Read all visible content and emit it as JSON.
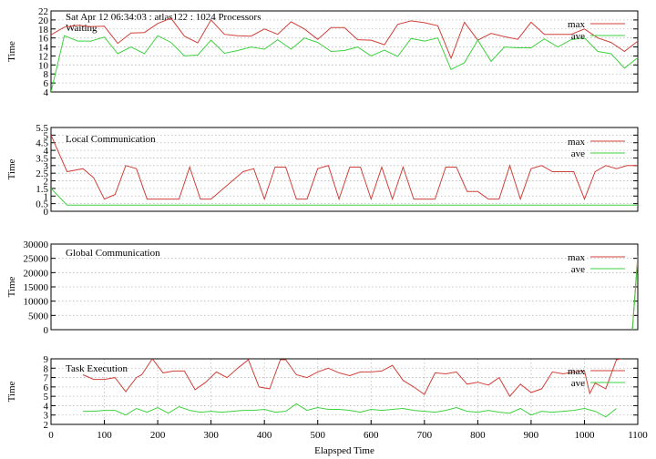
{
  "header": "Sat Apr 12 06:34:03 : atlas122 : 1024 Processors",
  "chart_data": [
    {
      "type": "line",
      "title": "Waiting",
      "ylabel": "Time",
      "xlim": [
        0,
        1100
      ],
      "ylim": [
        4,
        22
      ],
      "yticks": [
        4,
        6,
        8,
        10,
        12,
        14,
        16,
        18,
        20,
        22
      ],
      "x_grid": false,
      "legend_position": "top-right",
      "series": [
        {
          "name": "max",
          "color": "#d0403a",
          "x": [
            0,
            25,
            50,
            75,
            100,
            125,
            150,
            175,
            200,
            225,
            250,
            275,
            300,
            325,
            350,
            375,
            400,
            425,
            450,
            475,
            500,
            525,
            550,
            575,
            600,
            625,
            650,
            675,
            700,
            725,
            750,
            775,
            800,
            825,
            850,
            875,
            900,
            925,
            950,
            975,
            1000,
            1025,
            1050,
            1075,
            1100
          ],
          "y": [
            16.7,
            18.4,
            18.8,
            18.5,
            18.6,
            14.8,
            17.1,
            17.2,
            19.2,
            20.4,
            16.4,
            14.9,
            20.0,
            16.8,
            16.5,
            16.4,
            18.0,
            16.8,
            19.6,
            18.0,
            15.7,
            18.3,
            18.3,
            15.6,
            15.5,
            14.5,
            19.0,
            19.8,
            19.4,
            18.7,
            11.5,
            19.5,
            15.5,
            17.0,
            16.3,
            15.7,
            19.5,
            16.8,
            16.8,
            16.8,
            18.0,
            16.0,
            15.0,
            13.0,
            15.3
          ]
        },
        {
          "name": "ave",
          "color": "#3fd13f",
          "x": [
            0,
            25,
            50,
            75,
            100,
            125,
            150,
            175,
            200,
            225,
            250,
            275,
            300,
            325,
            350,
            375,
            400,
            425,
            450,
            475,
            500,
            525,
            550,
            575,
            600,
            625,
            650,
            675,
            700,
            725,
            750,
            775,
            800,
            825,
            850,
            875,
            900,
            925,
            950,
            975,
            1000,
            1025,
            1050,
            1075,
            1100
          ],
          "y": [
            4.0,
            16.5,
            15.3,
            15.3,
            16.2,
            12.5,
            14.0,
            12.5,
            16.5,
            15.0,
            12.0,
            12.2,
            15.5,
            12.6,
            13.2,
            14.0,
            13.5,
            15.6,
            13.5,
            16.0,
            15.0,
            13.0,
            13.2,
            14.0,
            12.0,
            13.3,
            11.9,
            15.9,
            15.3,
            16.0,
            9.0,
            10.5,
            15.5,
            10.8,
            14.0,
            13.8,
            13.8,
            15.8,
            14.0,
            15.6,
            16.0,
            13.0,
            12.5,
            9.3,
            11.6
          ]
        }
      ]
    },
    {
      "type": "line",
      "title": "Local Communication",
      "ylabel": "Time",
      "xlim": [
        0,
        1100
      ],
      "ylim": [
        0,
        5.5
      ],
      "yticks": [
        0,
        0.5,
        1,
        1.5,
        2,
        2.5,
        3,
        3.5,
        4,
        4.5,
        5,
        5.5
      ],
      "x_grid": false,
      "legend_position": "top-right",
      "series": [
        {
          "name": "max",
          "color": "#d0403a",
          "x": [
            0,
            30,
            60,
            80,
            100,
            120,
            140,
            160,
            180,
            200,
            220,
            240,
            260,
            280,
            300,
            320,
            340,
            360,
            380,
            400,
            420,
            440,
            460,
            480,
            500,
            520,
            540,
            560,
            580,
            600,
            620,
            640,
            660,
            680,
            700,
            720,
            740,
            760,
            780,
            800,
            820,
            840,
            860,
            880,
            900,
            920,
            940,
            960,
            980,
            1000,
            1020,
            1040,
            1060,
            1080,
            1100
          ],
          "y": [
            5.0,
            2.6,
            2.8,
            2.2,
            0.8,
            1.1,
            3.0,
            2.8,
            0.8,
            0.8,
            0.8,
            0.8,
            2.9,
            0.8,
            0.8,
            1.4,
            2.0,
            2.6,
            2.8,
            0.8,
            2.9,
            2.9,
            0.8,
            0.8,
            2.8,
            3.0,
            0.8,
            2.9,
            2.9,
            0.8,
            2.9,
            0.8,
            2.9,
            0.8,
            0.8,
            0.8,
            2.9,
            2.9,
            1.3,
            1.3,
            0.8,
            0.8,
            3.0,
            0.8,
            2.8,
            3.0,
            2.6,
            2.6,
            2.6,
            0.8,
            2.6,
            3.0,
            2.8,
            3.0,
            3.0
          ]
        },
        {
          "name": "ave",
          "color": "#3fd13f",
          "x": [
            0,
            30,
            60,
            100,
            200,
            300,
            400,
            500,
            600,
            700,
            800,
            900,
            1000,
            1100
          ],
          "y": [
            1.5,
            0.4,
            0.4,
            0.4,
            0.4,
            0.4,
            0.4,
            0.4,
            0.4,
            0.4,
            0.4,
            0.4,
            0.4,
            0.4
          ]
        }
      ]
    },
    {
      "type": "line",
      "title": "Global Communication",
      "ylabel": "Time",
      "xlim": [
        0,
        1100
      ],
      "ylim": [
        0,
        30000
      ],
      "yticks": [
        0,
        5000,
        10000,
        15000,
        20000,
        25000,
        30000
      ],
      "x_grid": false,
      "legend_position": "top-right",
      "series": [
        {
          "name": "max",
          "color": "#d0403a",
          "x": [
            1090,
            1100
          ],
          "y": [
            0,
            26000
          ]
        },
        {
          "name": "ave",
          "color": "#3fd13f",
          "x": [
            1090,
            1100
          ],
          "y": [
            0,
            25000
          ]
        }
      ]
    },
    {
      "type": "line",
      "title": "Task Execution",
      "ylabel": "Time",
      "xlabel": "Elapsped Time",
      "xlim": [
        0,
        1100
      ],
      "ylim": [
        2,
        9
      ],
      "yticks": [
        2,
        3,
        4,
        5,
        6,
        7,
        8,
        9
      ],
      "xticks": [
        0,
        100,
        200,
        300,
        400,
        500,
        600,
        700,
        800,
        900,
        1000,
        1100
      ],
      "x_grid": true,
      "legend_position": "top-right",
      "series": [
        {
          "name": "max",
          "color": "#d0403a",
          "x": [
            60,
            80,
            100,
            120,
            140,
            160,
            170,
            190,
            210,
            230,
            250,
            270,
            290,
            310,
            330,
            350,
            370,
            390,
            410,
            430,
            440,
            460,
            480,
            500,
            520,
            540,
            560,
            580,
            600,
            620,
            640,
            660,
            680,
            700,
            720,
            740,
            760,
            780,
            800,
            820,
            840,
            860,
            880,
            900,
            920,
            940,
            960,
            980,
            1000,
            1010,
            1020,
            1040,
            1060,
            1070
          ],
          "y": [
            7.3,
            6.8,
            6.8,
            7.0,
            5.5,
            7.0,
            7.3,
            9.0,
            7.5,
            7.7,
            7.7,
            5.7,
            6.5,
            7.6,
            7.0,
            8.0,
            8.9,
            6.0,
            5.8,
            8.9,
            8.9,
            7.3,
            7.0,
            7.6,
            8.0,
            7.5,
            7.2,
            7.6,
            7.6,
            7.7,
            8.3,
            6.7,
            6.0,
            5.2,
            7.5,
            7.4,
            7.6,
            6.3,
            6.5,
            6.2,
            7.0,
            5.0,
            6.3,
            5.4,
            5.8,
            7.6,
            7.4,
            7.6,
            7.7,
            5.3,
            6.4,
            5.8,
            8.9,
            9.0
          ]
        },
        {
          "name": "ave",
          "color": "#3fd13f",
          "x": [
            60,
            80,
            100,
            120,
            140,
            160,
            180,
            200,
            220,
            240,
            260,
            280,
            300,
            320,
            340,
            360,
            380,
            400,
            420,
            440,
            460,
            480,
            500,
            520,
            540,
            560,
            580,
            600,
            620,
            640,
            660,
            680,
            700,
            720,
            740,
            760,
            780,
            800,
            820,
            840,
            860,
            880,
            900,
            920,
            940,
            960,
            980,
            1000,
            1020,
            1040,
            1060
          ],
          "y": [
            3.4,
            3.4,
            3.5,
            3.5,
            3.0,
            3.7,
            3.3,
            3.8,
            3.2,
            3.9,
            3.5,
            3.3,
            3.4,
            3.3,
            3.4,
            3.5,
            3.5,
            3.6,
            3.3,
            3.4,
            4.2,
            3.5,
            3.8,
            3.6,
            3.6,
            3.5,
            3.3,
            3.6,
            3.5,
            3.6,
            3.7,
            3.5,
            3.4,
            3.3,
            3.5,
            3.8,
            3.4,
            3.3,
            3.5,
            3.3,
            3.2,
            3.7,
            3.0,
            3.4,
            3.3,
            3.4,
            3.5,
            3.7,
            3.4,
            2.8,
            3.7
          ]
        }
      ]
    }
  ]
}
